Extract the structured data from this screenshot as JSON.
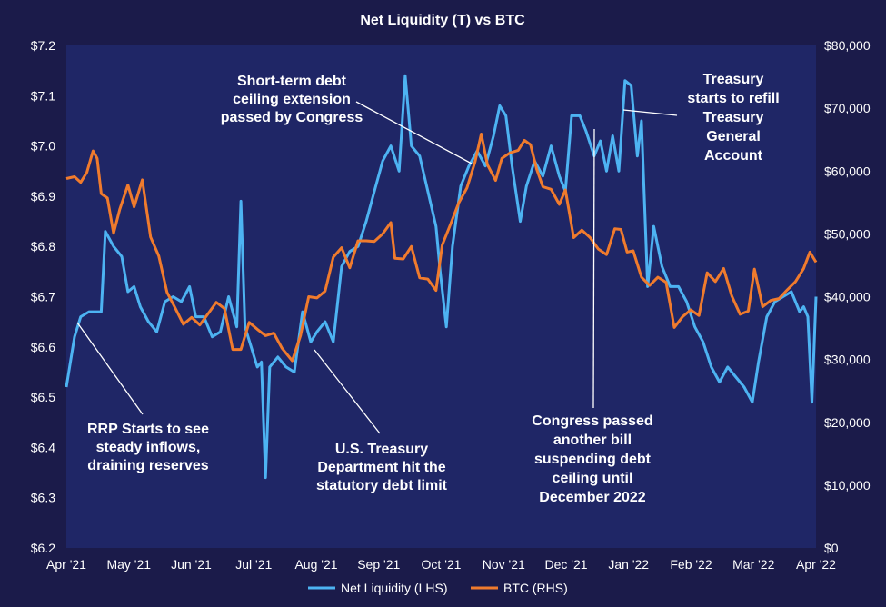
{
  "chart_data": {
    "type": "line",
    "title": "Net Liquidity (T) vs BTC",
    "x_ticks": [
      "Apr '21",
      "May '21",
      "Jun '21",
      "Jul '21",
      "Aug '21",
      "Sep '21",
      "Oct '21",
      "Nov '21",
      "Dec '21",
      "Jan '22",
      "Feb '22",
      "Mar '22",
      "Apr '22"
    ],
    "y_left": {
      "min": 6.2,
      "max": 7.2,
      "ticks": [
        "$6.2",
        "$6.3",
        "$6.4",
        "$6.5",
        "$6.6",
        "$6.7",
        "$6.8",
        "$6.9",
        "$7.0",
        "$7.1",
        "$7.2"
      ]
    },
    "y_right": {
      "min": 0,
      "max": 80000,
      "ticks": [
        "$0",
        "$10,000",
        "$20,000",
        "$30,000",
        "$40,000",
        "$50,000",
        "$60,000",
        "$70,000",
        "$80,000"
      ]
    },
    "grid": false,
    "legend_position": "bottom",
    "series": [
      {
        "name": "Net Liquidity (LHS)",
        "axis": "left",
        "color": "#4db3f2",
        "points": [
          [
            "2021-04-01",
            6.52
          ],
          [
            "2021-04-05",
            6.62
          ],
          [
            "2021-04-08",
            6.66
          ],
          [
            "2021-04-12",
            6.67
          ],
          [
            "2021-04-15",
            6.67
          ],
          [
            "2021-04-18",
            6.67
          ],
          [
            "2021-04-20",
            6.83
          ],
          [
            "2021-04-24",
            6.8
          ],
          [
            "2021-04-28",
            6.78
          ],
          [
            "2021-05-01",
            6.71
          ],
          [
            "2021-05-04",
            6.72
          ],
          [
            "2021-05-07",
            6.68
          ],
          [
            "2021-05-11",
            6.65
          ],
          [
            "2021-05-15",
            6.63
          ],
          [
            "2021-05-19",
            6.69
          ],
          [
            "2021-05-23",
            6.7
          ],
          [
            "2021-05-27",
            6.69
          ],
          [
            "2021-05-31",
            6.72
          ],
          [
            "2021-06-03",
            6.66
          ],
          [
            "2021-06-07",
            6.66
          ],
          [
            "2021-06-11",
            6.62
          ],
          [
            "2021-06-15",
            6.63
          ],
          [
            "2021-06-19",
            6.7
          ],
          [
            "2021-06-23",
            6.64
          ],
          [
            "2021-06-25",
            6.89
          ],
          [
            "2021-06-27",
            6.64
          ],
          [
            "2021-06-30",
            6.6
          ],
          [
            "2021-07-03",
            6.56
          ],
          [
            "2021-07-05",
            6.57
          ],
          [
            "2021-07-07",
            6.34
          ],
          [
            "2021-07-09",
            6.56
          ],
          [
            "2021-07-13",
            6.58
          ],
          [
            "2021-07-17",
            6.56
          ],
          [
            "2021-07-21",
            6.55
          ],
          [
            "2021-07-25",
            6.67
          ],
          [
            "2021-07-29",
            6.61
          ],
          [
            "2021-08-01",
            6.63
          ],
          [
            "2021-08-05",
            6.65
          ],
          [
            "2021-08-09",
            6.61
          ],
          [
            "2021-08-13",
            6.76
          ],
          [
            "2021-08-17",
            6.79
          ],
          [
            "2021-08-21",
            6.8
          ],
          [
            "2021-08-25",
            6.85
          ],
          [
            "2021-08-29",
            6.91
          ],
          [
            "2021-09-02",
            6.97
          ],
          [
            "2021-09-06",
            7.0
          ],
          [
            "2021-09-10",
            6.95
          ],
          [
            "2021-09-13",
            7.14
          ],
          [
            "2021-09-16",
            7.0
          ],
          [
            "2021-09-20",
            6.98
          ],
          [
            "2021-09-24",
            6.91
          ],
          [
            "2021-09-28",
            6.84
          ],
          [
            "2021-09-30",
            6.75
          ],
          [
            "2021-10-03",
            6.64
          ],
          [
            "2021-10-06",
            6.8
          ],
          [
            "2021-10-10",
            6.92
          ],
          [
            "2021-10-14",
            6.96
          ],
          [
            "2021-10-18",
            6.99
          ],
          [
            "2021-10-22",
            6.96
          ],
          [
            "2021-10-26",
            7.02
          ],
          [
            "2021-10-29",
            7.08
          ],
          [
            "2021-11-01",
            7.06
          ],
          [
            "2021-11-04",
            6.96
          ],
          [
            "2021-11-08",
            6.85
          ],
          [
            "2021-11-11",
            6.92
          ],
          [
            "2021-11-15",
            6.97
          ],
          [
            "2021-11-19",
            6.94
          ],
          [
            "2021-11-23",
            7.0
          ],
          [
            "2021-11-27",
            6.94
          ],
          [
            "2021-11-30",
            6.91
          ],
          [
            "2021-12-03",
            7.06
          ],
          [
            "2021-12-07",
            7.06
          ],
          [
            "2021-12-10",
            7.03
          ],
          [
            "2021-12-14",
            6.98
          ],
          [
            "2021-12-17",
            7.01
          ],
          [
            "2021-12-20",
            6.95
          ],
          [
            "2021-12-23",
            7.02
          ],
          [
            "2021-12-26",
            6.95
          ],
          [
            "2021-12-29",
            7.13
          ],
          [
            "2022-01-01",
            7.12
          ],
          [
            "2022-01-04",
            6.98
          ],
          [
            "2022-01-06",
            7.05
          ],
          [
            "2022-01-09",
            6.72
          ],
          [
            "2022-01-12",
            6.84
          ],
          [
            "2022-01-16",
            6.76
          ],
          [
            "2022-01-20",
            6.72
          ],
          [
            "2022-01-24",
            6.72
          ],
          [
            "2022-01-28",
            6.69
          ],
          [
            "2022-02-01",
            6.64
          ],
          [
            "2022-02-05",
            6.61
          ],
          [
            "2022-02-09",
            6.56
          ],
          [
            "2022-02-13",
            6.53
          ],
          [
            "2022-02-17",
            6.56
          ],
          [
            "2022-02-21",
            6.54
          ],
          [
            "2022-02-25",
            6.52
          ],
          [
            "2022-03-01",
            6.49
          ],
          [
            "2022-03-04",
            6.57
          ],
          [
            "2022-03-08",
            6.66
          ],
          [
            "2022-03-12",
            6.69
          ],
          [
            "2022-03-16",
            6.7
          ],
          [
            "2022-03-20",
            6.71
          ],
          [
            "2022-03-24",
            6.67
          ],
          [
            "2022-03-26",
            6.68
          ],
          [
            "2022-03-28",
            6.66
          ],
          [
            "2022-03-30",
            6.49
          ],
          [
            "2022-04-01",
            6.7
          ]
        ]
      },
      {
        "name": "BTC (RHS)",
        "axis": "right",
        "color": "#f07b2d",
        "points": [
          [
            "2021-04-01",
            58800
          ],
          [
            "2021-04-05",
            59100
          ],
          [
            "2021-04-08",
            58200
          ],
          [
            "2021-04-11",
            59800
          ],
          [
            "2021-04-14",
            63200
          ],
          [
            "2021-04-16",
            62000
          ],
          [
            "2021-04-18",
            56400
          ],
          [
            "2021-04-21",
            55700
          ],
          [
            "2021-04-24",
            50100
          ],
          [
            "2021-04-27",
            53900
          ],
          [
            "2021-05-01",
            57800
          ],
          [
            "2021-05-04",
            54300
          ],
          [
            "2021-05-08",
            58600
          ],
          [
            "2021-05-12",
            49500
          ],
          [
            "2021-05-16",
            46500
          ],
          [
            "2021-05-20",
            40700
          ],
          [
            "2021-05-24",
            38200
          ],
          [
            "2021-05-28",
            35600
          ],
          [
            "2021-06-01",
            36700
          ],
          [
            "2021-06-05",
            35500
          ],
          [
            "2021-06-09",
            37300
          ],
          [
            "2021-06-13",
            39100
          ],
          [
            "2021-06-17",
            38100
          ],
          [
            "2021-06-21",
            31600
          ],
          [
            "2021-06-25",
            31600
          ],
          [
            "2021-06-29",
            35900
          ],
          [
            "2021-07-03",
            34800
          ],
          [
            "2021-07-07",
            33800
          ],
          [
            "2021-07-11",
            34200
          ],
          [
            "2021-07-15",
            31800
          ],
          [
            "2021-07-20",
            29800
          ],
          [
            "2021-07-24",
            33800
          ],
          [
            "2021-07-28",
            40000
          ],
          [
            "2021-08-01",
            39800
          ],
          [
            "2021-08-05",
            40900
          ],
          [
            "2021-08-09",
            46300
          ],
          [
            "2021-08-13",
            47800
          ],
          [
            "2021-08-17",
            44600
          ],
          [
            "2021-08-21",
            48900
          ],
          [
            "2021-08-25",
            48900
          ],
          [
            "2021-08-29",
            48800
          ],
          [
            "2021-09-02",
            50000
          ],
          [
            "2021-09-06",
            51800
          ],
          [
            "2021-09-08",
            46100
          ],
          [
            "2021-09-12",
            46000
          ],
          [
            "2021-09-16",
            48000
          ],
          [
            "2021-09-20",
            43000
          ],
          [
            "2021-09-24",
            42800
          ],
          [
            "2021-09-28",
            41000
          ],
          [
            "2021-10-01",
            48200
          ],
          [
            "2021-10-05",
            51500
          ],
          [
            "2021-10-09",
            54900
          ],
          [
            "2021-10-13",
            57300
          ],
          [
            "2021-10-17",
            61500
          ],
          [
            "2021-10-20",
            65900
          ],
          [
            "2021-10-23",
            61000
          ],
          [
            "2021-10-27",
            58500
          ],
          [
            "2021-10-30",
            62000
          ],
          [
            "2021-11-03",
            62900
          ],
          [
            "2021-11-07",
            63300
          ],
          [
            "2021-11-10",
            64900
          ],
          [
            "2021-11-13",
            64200
          ],
          [
            "2021-11-16",
            60300
          ],
          [
            "2021-11-19",
            57500
          ],
          [
            "2021-11-23",
            57100
          ],
          [
            "2021-11-27",
            54700
          ],
          [
            "2021-11-30",
            57000
          ],
          [
            "2021-12-04",
            49400
          ],
          [
            "2021-12-08",
            50600
          ],
          [
            "2021-12-12",
            49400
          ],
          [
            "2021-12-16",
            47600
          ],
          [
            "2021-12-20",
            46700
          ],
          [
            "2021-12-24",
            50800
          ],
          [
            "2021-12-27",
            50700
          ],
          [
            "2021-12-30",
            47100
          ],
          [
            "2022-01-02",
            47300
          ],
          [
            "2022-01-06",
            43100
          ],
          [
            "2022-01-10",
            41800
          ],
          [
            "2022-01-14",
            43100
          ],
          [
            "2022-01-18",
            42300
          ],
          [
            "2022-01-22",
            35100
          ],
          [
            "2022-01-26",
            36800
          ],
          [
            "2022-01-30",
            37900
          ],
          [
            "2022-02-03",
            37000
          ],
          [
            "2022-02-07",
            43800
          ],
          [
            "2022-02-11",
            42400
          ],
          [
            "2022-02-15",
            44500
          ],
          [
            "2022-02-19",
            40100
          ],
          [
            "2022-02-23",
            37200
          ],
          [
            "2022-02-27",
            37700
          ],
          [
            "2022-03-02",
            44400
          ],
          [
            "2022-03-06",
            38400
          ],
          [
            "2022-03-10",
            39400
          ],
          [
            "2022-03-14",
            39700
          ],
          [
            "2022-03-18",
            41100
          ],
          [
            "2022-03-22",
            42400
          ],
          [
            "2022-03-26",
            44500
          ],
          [
            "2022-03-29",
            47100
          ],
          [
            "2022-04-01",
            45500
          ]
        ]
      }
    ],
    "annotations": [
      {
        "lines": [
          "Short-term debt",
          "ceiling extension",
          "passed by Congress"
        ]
      },
      {
        "lines": [
          "Treasury",
          "starts to refill",
          "Treasury",
          "General",
          "Account"
        ]
      },
      {
        "lines": [
          "RRP Starts to see",
          "steady inflows,",
          "draining reserves"
        ]
      },
      {
        "lines": [
          "U.S. Treasury",
          "Department hit the",
          "statutory debt limit"
        ]
      },
      {
        "lines": [
          "Congress passed",
          "another bill",
          "suspending debt",
          "ceiling until",
          "December 2022"
        ]
      }
    ]
  }
}
